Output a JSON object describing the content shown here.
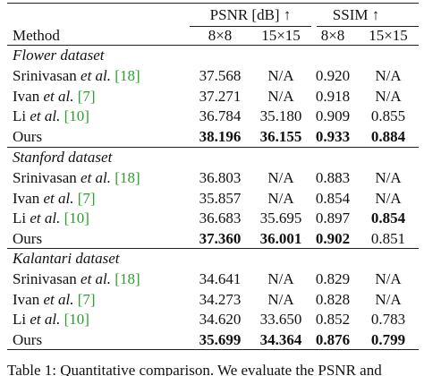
{
  "table": {
    "group_headers": [
      "PSNR [dB] ↑",
      "SSIM ↑"
    ],
    "method_header": "Method",
    "sub_headers": [
      "8×8",
      "15×15",
      "8×8",
      "15×15"
    ],
    "sections": [
      {
        "title": "Flower dataset",
        "rows": [
          {
            "method": [
              "Srinivasan",
              "et al.",
              "[18]"
            ],
            "cells": [
              "37.568",
              "N/A",
              "0.920",
              "N/A"
            ],
            "bold": [
              false,
              false,
              false,
              false
            ]
          },
          {
            "method": [
              "Ivan",
              "et al.",
              "[7]"
            ],
            "cells": [
              "37.271",
              "N/A",
              "0.918",
              "N/A"
            ],
            "bold": [
              false,
              false,
              false,
              false
            ]
          },
          {
            "method": [
              "Li",
              "et al.",
              "[10]"
            ],
            "cells": [
              "36.784",
              "35.180",
              "0.909",
              "0.855"
            ],
            "bold": [
              false,
              false,
              false,
              false
            ]
          },
          {
            "method": [
              "Ours"
            ],
            "cells": [
              "38.196",
              "36.155",
              "0.933",
              "0.884"
            ],
            "bold": [
              true,
              true,
              true,
              true
            ]
          }
        ]
      },
      {
        "title": "Stanford dataset",
        "rows": [
          {
            "method": [
              "Srinivasan",
              "et al.",
              "[18]"
            ],
            "cells": [
              "36.803",
              "N/A",
              "0.883",
              "N/A"
            ],
            "bold": [
              false,
              false,
              false,
              false
            ]
          },
          {
            "method": [
              "Ivan",
              "et al.",
              "[7]"
            ],
            "cells": [
              "35.857",
              "N/A",
              "0.854",
              "N/A"
            ],
            "bold": [
              false,
              false,
              false,
              false
            ]
          },
          {
            "method": [
              "Li",
              "et al.",
              "[10]"
            ],
            "cells": [
              "36.683",
              "35.695",
              "0.897",
              "0.854"
            ],
            "bold": [
              false,
              false,
              false,
              true
            ]
          },
          {
            "method": [
              "Ours"
            ],
            "cells": [
              "37.360",
              "36.001",
              "0.902",
              "0.851"
            ],
            "bold": [
              true,
              true,
              true,
              false
            ]
          }
        ]
      },
      {
        "title": "Kalantari dataset",
        "rows": [
          {
            "method": [
              "Srinivasan",
              "et al.",
              "[18]"
            ],
            "cells": [
              "34.641",
              "N/A",
              "0.829",
              "N/A"
            ],
            "bold": [
              false,
              false,
              false,
              false
            ]
          },
          {
            "method": [
              "Ivan",
              "et al.",
              "[7]"
            ],
            "cells": [
              "34.273",
              "N/A",
              "0.828",
              "N/A"
            ],
            "bold": [
              false,
              false,
              false,
              false
            ]
          },
          {
            "method": [
              "Li",
              "et al.",
              "[10]"
            ],
            "cells": [
              "34.620",
              "33.650",
              "0.852",
              "0.783"
            ],
            "bold": [
              false,
              false,
              false,
              false
            ]
          },
          {
            "method": [
              "Ours"
            ],
            "cells": [
              "35.699",
              "34.364",
              "0.876",
              "0.799"
            ],
            "bold": [
              true,
              true,
              true,
              true
            ]
          }
        ]
      }
    ],
    "caption": "Table 1: Quantitative comparison. We evaluate the PSNR and"
  }
}
